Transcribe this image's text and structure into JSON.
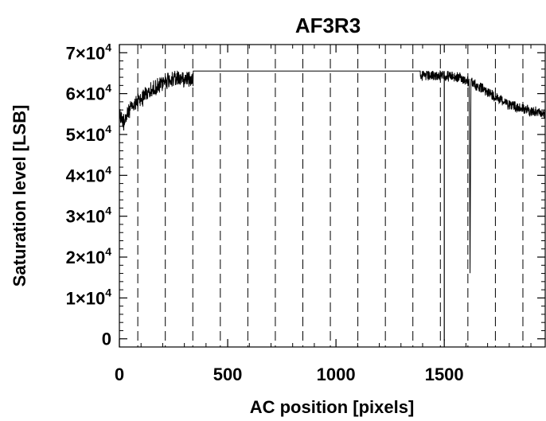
{
  "chart_data": {
    "type": "line",
    "title": "AF3R3",
    "xlabel": "AC position [pixels]",
    "ylabel": "Saturation level [LSB]",
    "xlim": [
      0,
      1966
    ],
    "ylim": [
      -2000,
      72000
    ],
    "x_ticks": [
      {
        "value": 0,
        "label": "0"
      },
      {
        "value": 500,
        "label": "500"
      },
      {
        "value": 1000,
        "label": "1000"
      },
      {
        "value": 1500,
        "label": "1500"
      }
    ],
    "y_ticks": [
      {
        "value": 0,
        "base": "0",
        "exp": ""
      },
      {
        "value": 10000,
        "base": "1×10",
        "exp": "4"
      },
      {
        "value": 20000,
        "base": "2×10",
        "exp": "4"
      },
      {
        "value": 30000,
        "base": "3×10",
        "exp": "4"
      },
      {
        "value": 40000,
        "base": "4×10",
        "exp": "4"
      },
      {
        "value": 50000,
        "base": "5×10",
        "exp": "4"
      },
      {
        "value": 60000,
        "base": "6×10",
        "exp": "4"
      },
      {
        "value": 70000,
        "base": "7×10",
        "exp": "4"
      }
    ],
    "vertical_dashed_lines": [
      85,
      212,
      339,
      466,
      593,
      720,
      847,
      974,
      1101,
      1228,
      1355,
      1482,
      1609,
      1736,
      1863
    ],
    "series": [
      {
        "name": "",
        "points": [
          [
            0,
            56500
          ],
          [
            20,
            55000
          ],
          [
            40,
            57000
          ],
          [
            60,
            58500
          ],
          [
            80,
            59500
          ],
          [
            100,
            60500
          ],
          [
            120,
            61500
          ],
          [
            140,
            62000
          ],
          [
            160,
            63000
          ],
          [
            180,
            63500
          ],
          [
            200,
            64500
          ],
          [
            220,
            65000
          ],
          [
            240,
            65500
          ],
          [
            260,
            65535
          ],
          [
            300,
            65535
          ],
          [
            400,
            65535
          ],
          [
            600,
            65535
          ],
          [
            800,
            65535
          ],
          [
            1000,
            65535
          ],
          [
            1200,
            65535
          ],
          [
            1400,
            65535
          ],
          [
            1500,
            65535
          ],
          [
            1560,
            65000
          ],
          [
            1600,
            64500
          ],
          [
            1615,
            64000
          ],
          [
            1619,
            18000
          ],
          [
            1623,
            64000
          ],
          [
            1650,
            63000
          ],
          [
            1700,
            61500
          ],
          [
            1750,
            60000
          ],
          [
            1800,
            58500
          ],
          [
            1850,
            57500
          ],
          [
            1900,
            56800
          ],
          [
            1966,
            56000
          ]
        ],
        "noise": [
          {
            "x_range": [
              0,
              340
            ],
            "amplitude": 3500
          },
          {
            "x_range": [
              1390,
              1966
            ],
            "amplitude": 2200
          }
        ],
        "dip_points": [
          [
            20,
            51000
          ],
          [
            1500,
            -500
          ]
        ]
      }
    ],
    "grid": false,
    "legend": "none"
  }
}
